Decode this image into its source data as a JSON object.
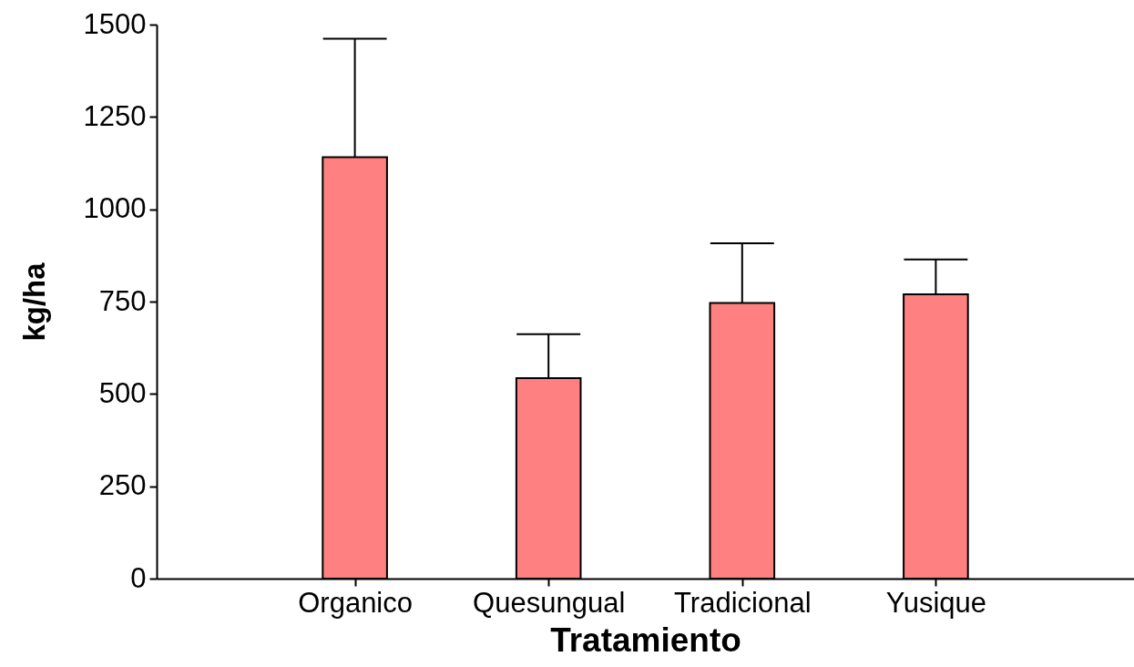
{
  "chart_data": {
    "type": "bar",
    "xlabel": "Tratamiento",
    "ylabel": "kg/ha",
    "categories": [
      "Organico",
      "Quesungual",
      "Tradicional",
      "Yusique"
    ],
    "values": [
      1141,
      543,
      746,
      770
    ],
    "errors": [
      [
        1141,
        1462
      ],
      [
        543,
        662
      ],
      [
        746,
        908
      ],
      [
        770,
        864
      ]
    ],
    "color": "#ff8080",
    "ylim": [
      0,
      1500
    ],
    "yticks": [
      0,
      250,
      500,
      750,
      1000,
      1250,
      1500
    ],
    "grid": false
  }
}
